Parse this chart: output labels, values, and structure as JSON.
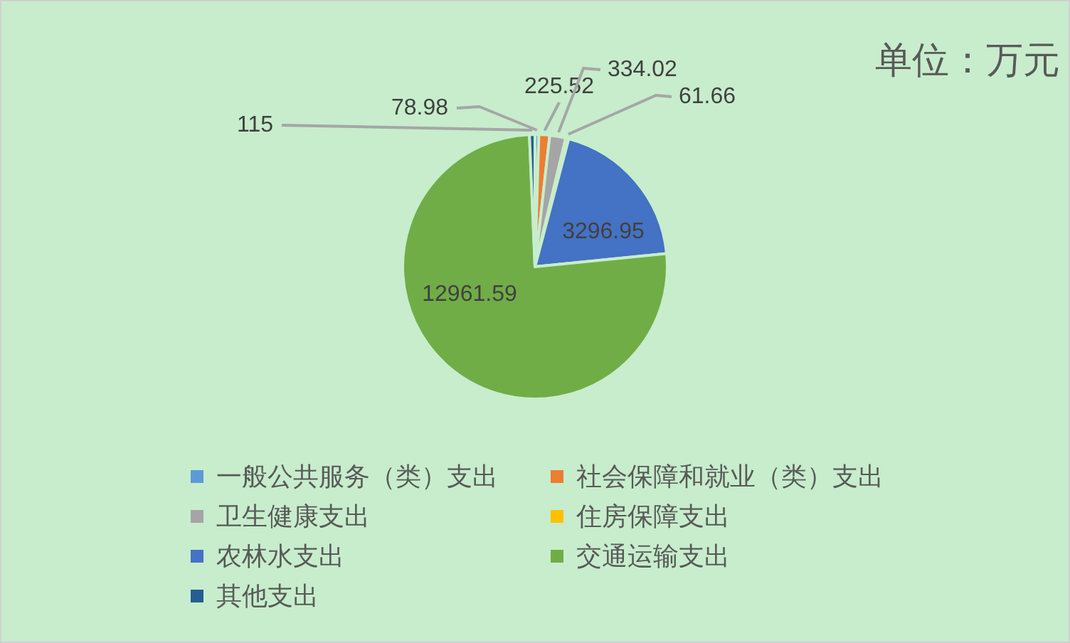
{
  "chart_data": {
    "type": "pie",
    "categories": [
      "一般公共服务（类）支出",
      "社会保障和就业（类）支出",
      "卫生健康支出",
      "住房保障支出",
      "农林水支出",
      "交通运输支出",
      "其他支出"
    ],
    "values": [
      78.98,
      225.52,
      334.02,
      61.66,
      3296.95,
      12961.59,
      115
    ],
    "colors": [
      "#5b9bd5",
      "#ed7d31",
      "#a5a5a5",
      "#ffc000",
      "#4472c4",
      "#70ad47",
      "#255e91"
    ],
    "data_labels": true,
    "legend": "bottom",
    "annotations": [
      "单位：万元"
    ]
  }
}
